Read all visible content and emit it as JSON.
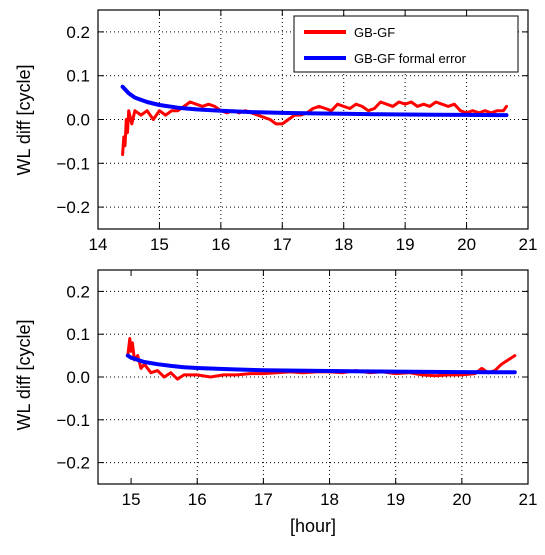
{
  "figure": {
    "panels": [
      {
        "ylabel": "WL diff [cycle]",
        "xlabel": ""
      },
      {
        "ylabel": "WL diff [cycle]",
        "xlabel": "[hour]"
      }
    ],
    "legend": {
      "placement": "top-right of top panel",
      "items": [
        {
          "label": "GB-GF",
          "color": "#ff0000"
        },
        {
          "label": "GB-GF formal error",
          "color": "#0000ff"
        }
      ]
    }
  },
  "chart_data": [
    {
      "type": "line",
      "title": "",
      "xlabel": "",
      "ylabel": "WL diff [cycle]",
      "xlim": [
        14,
        21
      ],
      "ylim": [
        -0.25,
        0.25
      ],
      "xticks": [
        14,
        15,
        16,
        17,
        18,
        19,
        20,
        21
      ],
      "xtick_labels": [
        "14",
        "15",
        "16",
        "17",
        "18",
        "19",
        "20",
        "21"
      ],
      "yticks": [
        -0.2,
        -0.1,
        0.0,
        0.1,
        0.2
      ],
      "ytick_labels": [
        "−0.2",
        "−0.1",
        "0.0",
        "0.1",
        "0.2"
      ],
      "grid": true,
      "legend": "top-right",
      "series": [
        {
          "name": "GB-GF",
          "color": "#ff0000",
          "x": [
            14.4,
            14.42,
            14.44,
            14.46,
            14.48,
            14.5,
            14.55,
            14.6,
            14.7,
            14.8,
            14.9,
            15.0,
            15.1,
            15.2,
            15.3,
            15.4,
            15.5,
            15.6,
            15.7,
            15.8,
            15.9,
            16.0,
            16.1,
            16.2,
            16.3,
            16.4,
            16.5,
            16.6,
            16.7,
            16.8,
            16.9,
            17.0,
            17.1,
            17.2,
            17.3,
            17.4,
            17.5,
            17.6,
            17.7,
            17.8,
            17.9,
            18.0,
            18.1,
            18.2,
            18.3,
            18.4,
            18.5,
            18.6,
            18.7,
            18.8,
            18.9,
            19.0,
            19.1,
            19.2,
            19.3,
            19.4,
            19.5,
            19.6,
            19.7,
            19.8,
            19.9,
            20.0,
            20.1,
            20.2,
            20.3,
            20.4,
            20.5,
            20.6,
            20.65
          ],
          "y": [
            -0.08,
            -0.04,
            -0.06,
            0.0,
            -0.03,
            0.02,
            -0.01,
            0.02,
            0.01,
            0.02,
            0.0,
            0.02,
            0.01,
            0.02,
            0.02,
            0.03,
            0.04,
            0.035,
            0.03,
            0.035,
            0.03,
            0.02,
            0.015,
            0.02,
            0.015,
            0.02,
            0.015,
            0.01,
            0.005,
            0.0,
            -0.01,
            -0.01,
            0.0,
            0.01,
            0.01,
            0.015,
            0.025,
            0.03,
            0.025,
            0.02,
            0.035,
            0.03,
            0.025,
            0.035,
            0.03,
            0.02,
            0.025,
            0.04,
            0.035,
            0.03,
            0.04,
            0.035,
            0.04,
            0.03,
            0.035,
            0.03,
            0.04,
            0.035,
            0.03,
            0.035,
            0.02,
            0.015,
            0.02,
            0.015,
            0.02,
            0.015,
            0.02,
            0.02,
            0.03
          ]
        },
        {
          "name": "GB-GF formal error",
          "color": "#0000ff",
          "x": [
            14.4,
            14.5,
            14.6,
            14.8,
            15.0,
            15.3,
            15.6,
            16.0,
            16.5,
            17.0,
            17.5,
            18.0,
            18.5,
            19.0,
            19.5,
            20.0,
            20.5,
            20.65
          ],
          "y": [
            0.075,
            0.06,
            0.05,
            0.04,
            0.033,
            0.027,
            0.023,
            0.02,
            0.017,
            0.015,
            0.014,
            0.013,
            0.012,
            0.0115,
            0.011,
            0.0105,
            0.01,
            0.01
          ]
        }
      ]
    },
    {
      "type": "line",
      "title": "",
      "xlabel": "[hour]",
      "ylabel": "WL diff [cycle]",
      "xlim": [
        14.5,
        21
      ],
      "ylim": [
        -0.25,
        0.25
      ],
      "xticks": [
        15,
        16,
        17,
        18,
        19,
        20,
        21
      ],
      "xtick_labels": [
        "15",
        "16",
        "17",
        "18",
        "19",
        "20",
        "21"
      ],
      "yticks": [
        -0.2,
        -0.1,
        0.0,
        0.1,
        0.2
      ],
      "ytick_labels": [
        "−0.2",
        "−0.1",
        "0.0",
        "0.1",
        "0.2"
      ],
      "grid": true,
      "series": [
        {
          "name": "GB-GF",
          "color": "#ff0000",
          "x": [
            14.95,
            14.98,
            15.0,
            15.02,
            15.05,
            15.1,
            15.15,
            15.2,
            15.3,
            15.4,
            15.5,
            15.6,
            15.7,
            15.8,
            16.0,
            16.2,
            16.4,
            16.6,
            16.8,
            17.0,
            17.2,
            17.4,
            17.6,
            17.8,
            18.0,
            18.2,
            18.4,
            18.6,
            18.8,
            19.0,
            19.2,
            19.4,
            19.6,
            19.8,
            20.0,
            20.2,
            20.3,
            20.4,
            20.5,
            20.6,
            20.7,
            20.8
          ],
          "y": [
            0.05,
            0.09,
            0.06,
            0.08,
            0.04,
            0.05,
            0.02,
            0.03,
            0.01,
            0.015,
            0.0,
            0.01,
            -0.005,
            0.005,
            0.005,
            0.0,
            0.005,
            0.005,
            0.008,
            0.008,
            0.01,
            0.012,
            0.01,
            0.012,
            0.012,
            0.01,
            0.015,
            0.01,
            0.012,
            0.008,
            0.01,
            0.005,
            0.003,
            0.005,
            0.005,
            0.008,
            0.02,
            0.01,
            0.015,
            0.03,
            0.04,
            0.05
          ]
        },
        {
          "name": "GB-GF formal error",
          "color": "#0000ff",
          "x": [
            14.95,
            15.0,
            15.1,
            15.2,
            15.4,
            15.6,
            15.8,
            16.0,
            16.5,
            17.0,
            17.5,
            18.0,
            18.5,
            19.0,
            19.5,
            20.0,
            20.5,
            20.8
          ],
          "y": [
            0.05,
            0.045,
            0.04,
            0.035,
            0.03,
            0.026,
            0.023,
            0.021,
            0.018,
            0.016,
            0.015,
            0.014,
            0.013,
            0.0125,
            0.012,
            0.0115,
            0.011,
            0.011
          ]
        }
      ]
    }
  ]
}
